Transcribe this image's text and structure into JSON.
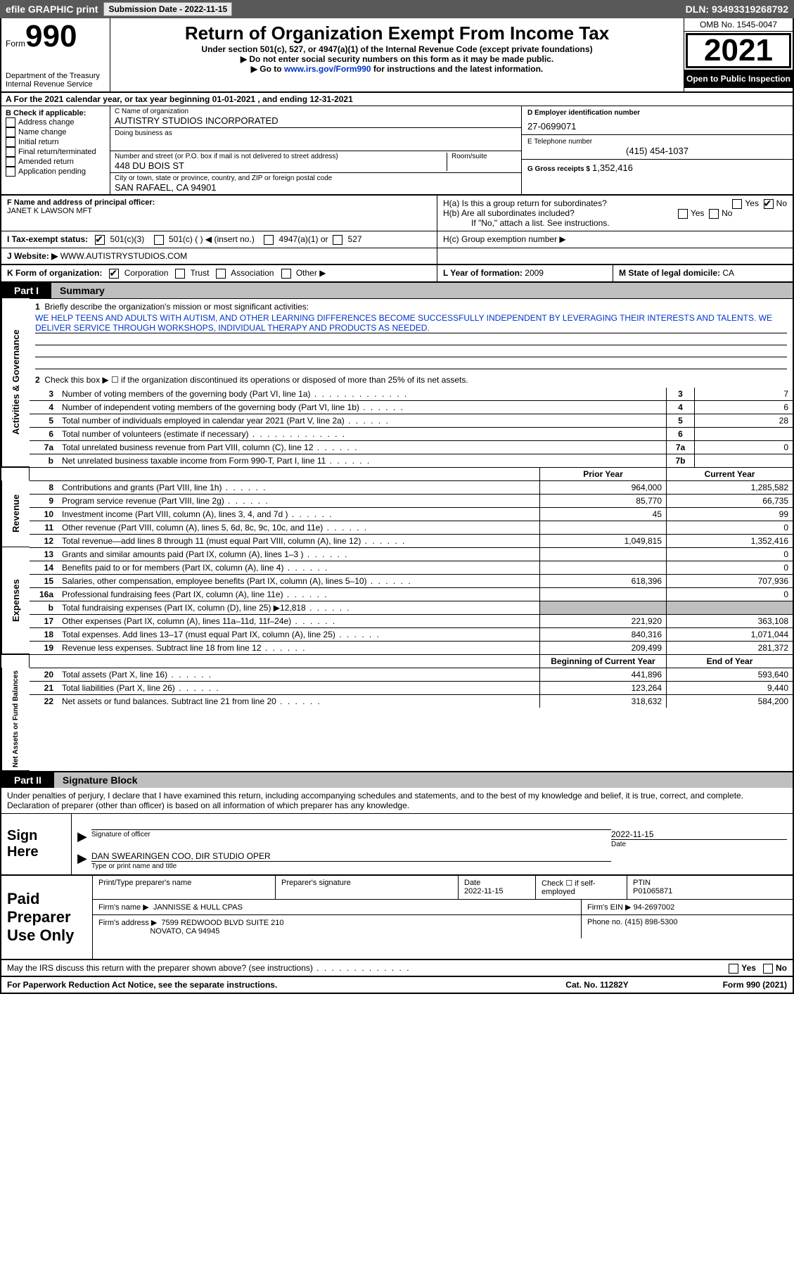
{
  "topbar": {
    "efile": "efile GRAPHIC print",
    "submission": "Submission Date - 2022-11-15",
    "dln": "DLN: 93493319268792"
  },
  "header": {
    "form_word": "Form",
    "form_num": "990",
    "dept": "Department of the Treasury",
    "service": "Internal Revenue Service",
    "title": "Return of Organization Exempt From Income Tax",
    "sub1": "Under section 501(c), 527, or 4947(a)(1) of the Internal Revenue Code (except private foundations)",
    "sub2": "▶ Do not enter social security numbers on this form as it may be made public.",
    "sub3": "▶ Go to www.irs.gov/Form990 for instructions and the latest information.",
    "link": "www.irs.gov/Form990",
    "omb": "OMB No. 1545-0047",
    "year": "2021",
    "open": "Open to Public Inspection"
  },
  "rowA": "A  For the 2021 calendar year, or tax year beginning 01-01-2021    , and ending 12-31-2021",
  "colB": {
    "title": "B Check if applicable:",
    "opts": [
      "Address change",
      "Name change",
      "Initial return",
      "Final return/terminated",
      "Amended return",
      "Application pending"
    ]
  },
  "colC": {
    "name_lbl": "C Name of organization",
    "name": "AUTISTRY STUDIOS INCORPORATED",
    "dba_lbl": "Doing business as",
    "addr_lbl": "Number and street (or P.O. box if mail is not delivered to street address)",
    "room_lbl": "Room/suite",
    "addr": "448 DU BOIS ST",
    "city_lbl": "City or town, state or province, country, and ZIP or foreign postal code",
    "city": "SAN RAFAEL, CA   94901"
  },
  "colD": {
    "ein_lbl": "D Employer identification number",
    "ein": "27-0699071",
    "phone_lbl": "E Telephone number",
    "phone": "(415) 454-1037",
    "gross_lbl": "G Gross receipts $",
    "gross": "1,352,416"
  },
  "rowF": {
    "lbl": "F Name and address of principal officer:",
    "val": "JANET K LAWSON MFT"
  },
  "rowH": {
    "ha": "H(a)  Is this a group return for subordinates?",
    "hb": "H(b)  Are all subordinates included?",
    "hb_note": "If \"No,\" attach a list. See instructions.",
    "hc": "H(c)  Group exemption number ▶",
    "yes": "Yes",
    "no": "No"
  },
  "rowI": {
    "lbl": "I    Tax-exempt status:",
    "a": "501(c)(3)",
    "b": "501(c) (   ) ◀ (insert no.)",
    "c": "4947(a)(1) or",
    "d": "527"
  },
  "rowJ": {
    "lbl": "J   Website: ▶",
    "val": "WWW.AUTISTRYSTUDIOS.COM"
  },
  "rowK": {
    "lbl": "K Form of organization:",
    "a": "Corporation",
    "b": "Trust",
    "c": "Association",
    "d": "Other ▶"
  },
  "rowL": {
    "lbl": "L Year of formation:",
    "val": "2009"
  },
  "rowM": {
    "lbl": "M State of legal domicile:",
    "val": "CA"
  },
  "part1": {
    "tab": "Part I",
    "title": "Summary"
  },
  "mission": {
    "lbl": "Briefly describe the organization's mission or most significant activities:",
    "text": "WE HELP TEENS AND ADULTS WITH AUTISM, AND OTHER LEARNING DIFFERENCES BECOME SUCCESSFULLY INDEPENDENT BY LEVERAGING THEIR INTERESTS AND TALENTS. WE DELIVER SERVICE THROUGH WORKSHOPS, INDIVIDUAL THERAPY AND PRODUCTS AS NEEDED."
  },
  "lines": {
    "l2": "Check this box ▶ ☐  if the organization discontinued its operations or disposed of more than 25% of its net assets.",
    "l3": {
      "t": "Number of voting members of the governing body (Part VI, line 1a)",
      "v": "7"
    },
    "l4": {
      "t": "Number of independent voting members of the governing body (Part VI, line 1b)",
      "v": "6"
    },
    "l5": {
      "t": "Total number of individuals employed in calendar year 2021 (Part V, line 2a)",
      "v": "28"
    },
    "l6": {
      "t": "Total number of volunteers (estimate if necessary)",
      "v": ""
    },
    "l7a": {
      "t": "Total unrelated business revenue from Part VIII, column (C), line 12",
      "v": "0"
    },
    "l7b": {
      "t": "Net unrelated business taxable income from Form 990-T, Part I, line 11",
      "v": ""
    }
  },
  "cols": {
    "py": "Prior Year",
    "cy": "Current Year",
    "bcy": "Beginning of Current Year",
    "eoy": "End of Year"
  },
  "rev": [
    {
      "n": "8",
      "t": "Contributions and grants (Part VIII, line 1h)",
      "p": "964,000",
      "c": "1,285,582"
    },
    {
      "n": "9",
      "t": "Program service revenue (Part VIII, line 2g)",
      "p": "85,770",
      "c": "66,735"
    },
    {
      "n": "10",
      "t": "Investment income (Part VIII, column (A), lines 3, 4, and 7d )",
      "p": "45",
      "c": "99"
    },
    {
      "n": "11",
      "t": "Other revenue (Part VIII, column (A), lines 5, 6d, 8c, 9c, 10c, and 11e)",
      "p": "",
      "c": "0"
    },
    {
      "n": "12",
      "t": "Total revenue—add lines 8 through 11 (must equal Part VIII, column (A), line 12)",
      "p": "1,049,815",
      "c": "1,352,416"
    }
  ],
  "exp": [
    {
      "n": "13",
      "t": "Grants and similar amounts paid (Part IX, column (A), lines 1–3 )",
      "p": "",
      "c": "0"
    },
    {
      "n": "14",
      "t": "Benefits paid to or for members (Part IX, column (A), line 4)",
      "p": "",
      "c": "0"
    },
    {
      "n": "15",
      "t": "Salaries, other compensation, employee benefits (Part IX, column (A), lines 5–10)",
      "p": "618,396",
      "c": "707,936"
    },
    {
      "n": "16a",
      "t": "Professional fundraising fees (Part IX, column (A), line 11e)",
      "p": "",
      "c": "0"
    },
    {
      "n": "b",
      "t": "Total fundraising expenses (Part IX, column (D), line 25) ▶12,818",
      "p": "grey",
      "c": "grey"
    },
    {
      "n": "17",
      "t": "Other expenses (Part IX, column (A), lines 11a–11d, 11f–24e)",
      "p": "221,920",
      "c": "363,108"
    },
    {
      "n": "18",
      "t": "Total expenses. Add lines 13–17 (must equal Part IX, column (A), line 25)",
      "p": "840,316",
      "c": "1,071,044"
    },
    {
      "n": "19",
      "t": "Revenue less expenses. Subtract line 18 from line 12",
      "p": "209,499",
      "c": "281,372"
    }
  ],
  "net": [
    {
      "n": "20",
      "t": "Total assets (Part X, line 16)",
      "p": "441,896",
      "c": "593,640"
    },
    {
      "n": "21",
      "t": "Total liabilities (Part X, line 26)",
      "p": "123,264",
      "c": "9,440"
    },
    {
      "n": "22",
      "t": "Net assets or fund balances. Subtract line 21 from line 20",
      "p": "318,632",
      "c": "584,200"
    }
  ],
  "vlabels": {
    "a": "Activities & Governance",
    "r": "Revenue",
    "e": "Expenses",
    "n": "Net Assets or Fund Balances"
  },
  "part2": {
    "tab": "Part II",
    "title": "Signature Block"
  },
  "penalties": "Under penalties of perjury, I declare that I have examined this return, including accompanying schedules and statements, and to the best of my knowledge and belief, it is true, correct, and complete. Declaration of preparer (other than officer) is based on all information of which preparer has any knowledge.",
  "sign": {
    "here": "Sign Here",
    "sig_lbl": "Signature of officer",
    "date": "2022-11-15",
    "date_lbl": "Date",
    "name": "DAN SWEARINGEN COO, DIR STUDIO OPER",
    "name_lbl": "Type or print name and title"
  },
  "prep": {
    "here": "Paid Preparer Use Only",
    "r1": {
      "a": "Print/Type preparer's name",
      "b": "Preparer's signature",
      "c": "Date",
      "c2": "2022-11-15",
      "d": "Check ☐  if self-employed",
      "e": "PTIN",
      "e2": "P01065871"
    },
    "r2": {
      "a": "Firm's name    ▶",
      "b": "JANNISSE & HULL CPAS",
      "c": "Firm's EIN ▶",
      "d": "94-2697002"
    },
    "r3": {
      "a": "Firm's address ▶",
      "b": "7599 REDWOOD BLVD SUITE 210",
      "b2": "NOVATO, CA   94945",
      "c": "Phone no.",
      "d": "(415) 898-5300"
    }
  },
  "discuss": "May the IRS discuss this return with the preparer shown above? (see instructions)",
  "foot": {
    "a": "For Paperwork Reduction Act Notice, see the separate instructions.",
    "b": "Cat. No. 11282Y",
    "c": "Form 990 (2021)"
  }
}
